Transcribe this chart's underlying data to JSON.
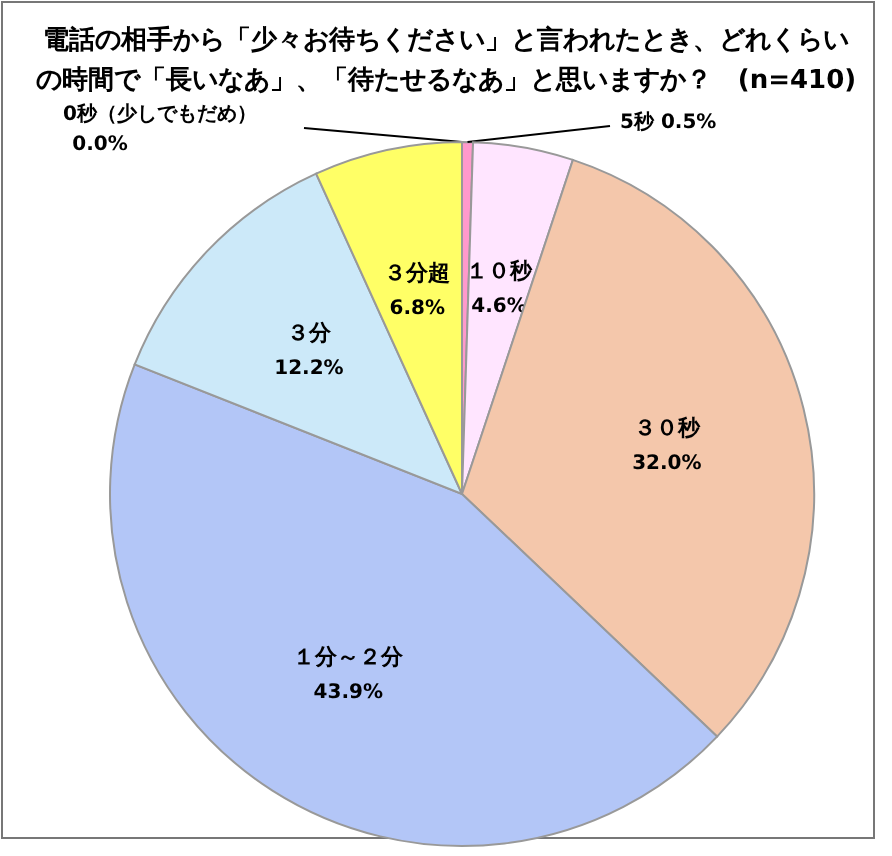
{
  "chart_data": {
    "type": "pie",
    "title": "電話の相手から「少々お待ちください」と言われたとき、どれくらいの時間で「長いなあ」、「待たせるなあ」と思いますか？　(n=410)",
    "categories": [
      "0秒（少しでもだめ）",
      "5秒",
      "１０秒",
      "３０秒",
      "１分～２分",
      "３分",
      "３分超"
    ],
    "values": [
      0.0,
      0.5,
      4.6,
      32.0,
      43.9,
      12.2,
      6.8
    ],
    "value_labels": [
      "0.0%",
      "0.5%",
      "4.6%",
      "32.0%",
      "43.9%",
      "12.2%",
      "6.8%"
    ],
    "colors": [
      "#9999ff",
      "#ff99cc",
      "#ffe5ff",
      "#f4c7ab",
      "#b3c6f7",
      "#cce9f9",
      "#ffff66"
    ]
  }
}
